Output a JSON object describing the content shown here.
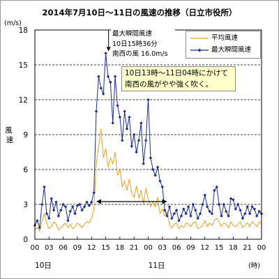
{
  "chart_data": {
    "type": "line",
    "title": "2014年7月10日～11日の風速の推移（日立市役所）",
    "ylabel_unit": "(m/s)",
    "ylabel": "風速",
    "xlabel_unit": "(時)",
    "ylim": [
      0,
      18
    ],
    "yticks": [
      "0",
      "3",
      "6",
      "9",
      "12",
      "15",
      "18"
    ],
    "xlim_hours": [
      0,
      48
    ],
    "xticks": [
      "00",
      "03",
      "06",
      "09",
      "12",
      "15",
      "18",
      "21",
      "00",
      "03",
      "06",
      "09",
      "12",
      "15",
      "18",
      "21",
      "00"
    ],
    "day_labels": [
      "10日",
      "11日"
    ],
    "grid": true,
    "legend_position": "top-right",
    "series": [
      {
        "name": "平均風速",
        "color": "#f0a020",
        "x": [
          0,
          0.5,
          1,
          1.5,
          2,
          2.5,
          3,
          3.5,
          4,
          4.5,
          5,
          5.5,
          6,
          6.5,
          7,
          7.5,
          8,
          8.5,
          9,
          9.5,
          10,
          10.5,
          11,
          11.5,
          12,
          12.5,
          13,
          13.5,
          14,
          14.5,
          15,
          15.5,
          16,
          16.5,
          17,
          17.5,
          18,
          18.5,
          19,
          19.5,
          20,
          20.5,
          21,
          21.5,
          22,
          22.5,
          23,
          23.5,
          24,
          24.5,
          25,
          25.5,
          26,
          26.5,
          27,
          27.5,
          28,
          28.5,
          29,
          29.5,
          30,
          30.5,
          31,
          31.5,
          32,
          32.5,
          33,
          33.5,
          34,
          34.5,
          35,
          35.5,
          36,
          36.5,
          37,
          37.5,
          38,
          38.5,
          39,
          39.5,
          40,
          40.5,
          41,
          41.5,
          42,
          42.5,
          43,
          43.5,
          44,
          44.5,
          45,
          45.5,
          46,
          46.5,
          47,
          47.5,
          48
        ],
        "values": [
          0.8,
          1.0,
          0.7,
          1.6,
          2.2,
          1.4,
          0.9,
          1.1,
          1.5,
          1.3,
          0.8,
          1.0,
          1.2,
          1.4,
          1.0,
          1.3,
          0.9,
          1.1,
          1.4,
          1.2,
          1.0,
          1.3,
          1.5,
          1.4,
          1.8,
          2.5,
          6.5,
          8.0,
          9.5,
          7.0,
          7.8,
          6.2,
          7.0,
          6.5,
          7.5,
          5.5,
          6.0,
          4.5,
          5.0,
          4.2,
          5.2,
          4.0,
          3.6,
          4.6,
          3.5,
          4.2,
          3.0,
          4.4,
          3.5,
          2.8,
          3.2,
          2.8,
          3.6,
          2.2,
          2.6,
          2.0,
          2.4,
          1.2,
          1.0,
          1.3,
          1.4,
          0.9,
          1.2,
          1.0,
          1.4,
          1.3,
          1.1,
          1.4,
          1.5,
          0.9,
          1.0,
          1.2,
          1.6,
          1.1,
          1.4,
          1.2,
          1.6,
          1.8,
          1.5,
          1.1,
          1.4,
          1.3,
          1.0,
          1.5,
          1.2,
          1.1,
          1.3,
          1.5,
          1.0,
          1.2,
          1.4,
          1.1,
          1.5,
          1.3,
          1.1,
          1.5,
          1.3
        ]
      },
      {
        "name": "最大瞬間風速",
        "color": "#1c2c8c",
        "x": [
          0,
          0.5,
          1,
          1.5,
          2,
          2.5,
          3,
          3.5,
          4,
          4.5,
          5,
          5.5,
          6,
          6.5,
          7,
          7.5,
          8,
          8.5,
          9,
          9.5,
          10,
          10.5,
          11,
          11.5,
          12,
          12.5,
          13,
          13.5,
          14,
          14.5,
          15,
          15.5,
          16,
          16.5,
          17,
          17.5,
          18,
          18.5,
          19,
          19.5,
          20,
          20.5,
          21,
          21.5,
          22,
          22.5,
          23,
          23.5,
          24,
          24.5,
          25,
          25.5,
          26,
          26.5,
          27,
          27.5,
          28,
          28.5,
          29,
          29.5,
          30,
          30.5,
          31,
          31.5,
          32,
          32.5,
          33,
          33.5,
          34,
          34.5,
          35,
          35.5,
          36,
          36.5,
          37,
          37.5,
          38,
          38.5,
          39,
          39.5,
          40,
          40.5,
          41,
          41.5,
          42,
          42.5,
          43,
          43.5,
          44,
          44.5,
          45,
          45.5,
          46,
          46.5,
          47,
          47.5,
          48
        ],
        "values": [
          1.2,
          1.6,
          1.0,
          3.0,
          4.5,
          2.2,
          1.8,
          3.5,
          2.5,
          3.2,
          2.0,
          2.5,
          3.0,
          2.8,
          1.6,
          2.4,
          2.8,
          2.2,
          2.9,
          3.0,
          2.5,
          2.8,
          3.2,
          2.9,
          3.2,
          4.0,
          11.0,
          14.0,
          13.0,
          12.5,
          16.0,
          14.0,
          13.5,
          10.0,
          14.0,
          11.5,
          10.5,
          8.5,
          11.0,
          9.5,
          10.5,
          8.0,
          9.0,
          7.5,
          8.5,
          10.0,
          6.5,
          8.5,
          12.0,
          7.0,
          6.0,
          5.5,
          6.2,
          5.0,
          4.5,
          2.5,
          2.0,
          2.8,
          1.8,
          2.2,
          2.5,
          1.6,
          2.0,
          2.6,
          2.2,
          2.8,
          2.0,
          3.0,
          2.5,
          1.8,
          2.2,
          3.0,
          3.8,
          2.8,
          2.4,
          2.2,
          4.2,
          4.5,
          3.0,
          2.0,
          3.0,
          2.4,
          2.0,
          3.5,
          3.4,
          2.6,
          3.0,
          2.5,
          1.8,
          2.2,
          2.8,
          2.2,
          2.8,
          2.6,
          2.0,
          2.4,
          2.2
        ]
      }
    ],
    "annotations": {
      "peak_marker_hour": 15.6,
      "peak_lines": [
        "最大瞬間風速",
        "10日15時36分",
        "南西の風 16.0m/s"
      ],
      "callout_lines": [
        "10日13時～11日04時にかけて",
        "南西の風がやや強く吹く。"
      ],
      "period_arrow_hours": [
        13,
        28
      ],
      "period_arrow_value": 4.5
    }
  }
}
